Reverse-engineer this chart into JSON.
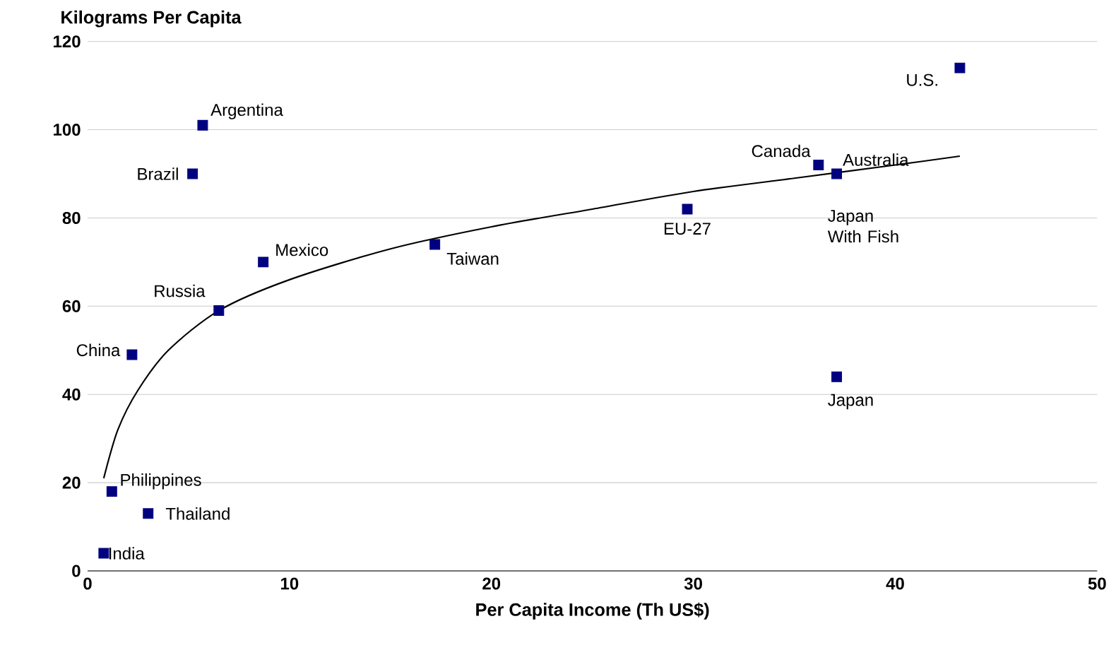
{
  "chart_data": {
    "type": "scatter",
    "title": "Kilograms Per Capita",
    "xlabel": "Per Capita Income (Th US$)",
    "series": [
      {
        "color": "#000080",
        "marker": "square",
        "x": [
          0.8,
          1.2,
          3.0,
          2.2,
          6.5,
          5.2,
          5.7,
          8.7,
          17.2,
          29.7,
          36.2,
          37.1,
          37.1,
          43.2
        ],
        "values": [
          4,
          18,
          13,
          49,
          59,
          90,
          101,
          70,
          74,
          82,
          92,
          90,
          44,
          114
        ]
      },
      {
        "type": "line",
        "color": "#000000",
        "marker": "none",
        "x": [
          0.8,
          1.5,
          2.5,
          4,
          6.5,
          10,
          15,
          20,
          25,
          30,
          35,
          40,
          43.2
        ],
        "values": [
          21,
          32,
          41,
          50,
          59,
          66,
          73,
          78,
          82,
          86,
          89,
          92,
          94
        ]
      }
    ],
    "annotations": [
      {
        "text": "India",
        "x": 0.8,
        "y": 4
      },
      {
        "text": "Philippines",
        "x": 1.2,
        "y": 18
      },
      {
        "text": "Thailand",
        "x": 3.0,
        "y": 13
      },
      {
        "text": "China",
        "x": 2.2,
        "y": 49
      },
      {
        "text": "Russia",
        "x": 6.5,
        "y": 59
      },
      {
        "text": "Brazil",
        "x": 5.2,
        "y": 90
      },
      {
        "text": "Argentina",
        "x": 5.7,
        "y": 101
      },
      {
        "text": "Mexico",
        "x": 8.7,
        "y": 70
      },
      {
        "text": "Taiwan",
        "x": 17.2,
        "y": 74
      },
      {
        "text": "EU-27",
        "x": 29.7,
        "y": 82
      },
      {
        "text": "Canada",
        "x": 36.2,
        "y": 92
      },
      {
        "text": "Australia",
        "x": 37.1,
        "y": 90
      },
      {
        "text": "Japan With Fish",
        "x": 37.1,
        "y": 90
      },
      {
        "text": "Japan",
        "x": 37.1,
        "y": 44
      },
      {
        "text": "U.S.",
        "x": 43.2,
        "y": 114
      }
    ],
    "xlim": [
      0,
      50
    ],
    "ylim": [
      0,
      120
    ],
    "xticks": [
      0,
      10,
      20,
      30,
      40,
      50
    ],
    "yticks": [
      0,
      20,
      40,
      60,
      80,
      100,
      120
    ],
    "grid": "y"
  }
}
